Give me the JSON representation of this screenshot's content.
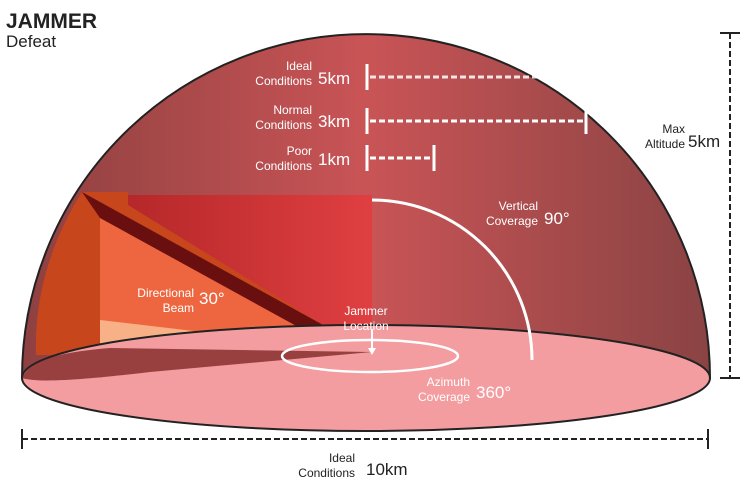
{
  "header": {
    "title": "JAMMER",
    "subtitle": "Defeat"
  },
  "ranges": [
    {
      "label_top": "Ideal",
      "label_bottom": "Conditions",
      "value": "5km"
    },
    {
      "label_top": "Normal",
      "label_bottom": "Conditions",
      "value": "3km"
    },
    {
      "label_top": "Poor",
      "label_bottom": "Conditions",
      "value": "1km"
    }
  ],
  "altitude": {
    "label_top": "Max",
    "label_bottom": "Altitude",
    "value": "5km"
  },
  "vertical": {
    "label_top": "Vertical",
    "label_bottom": "Coverage",
    "value": "90°"
  },
  "beam": {
    "label_top": "Directional",
    "label_bottom": "Beam",
    "value": "30°"
  },
  "jammer": {
    "label_top": "Jammer",
    "label_bottom": "Location"
  },
  "azimuth": {
    "label_top": "Azimuth",
    "label_bottom": "Coverage",
    "value": "360°"
  },
  "diameter": {
    "label_top": "Ideal",
    "label_bottom": "Conditions",
    "value": "10km"
  },
  "colors": {
    "dome_dark": "#8e4040",
    "dome_light": "#c95456",
    "base": "#f39da0",
    "vertical_rect": "#e0383c",
    "beam_orange": "#ee6640",
    "beam_light": "#f8b187",
    "beam_dark": "#6a0f10"
  }
}
